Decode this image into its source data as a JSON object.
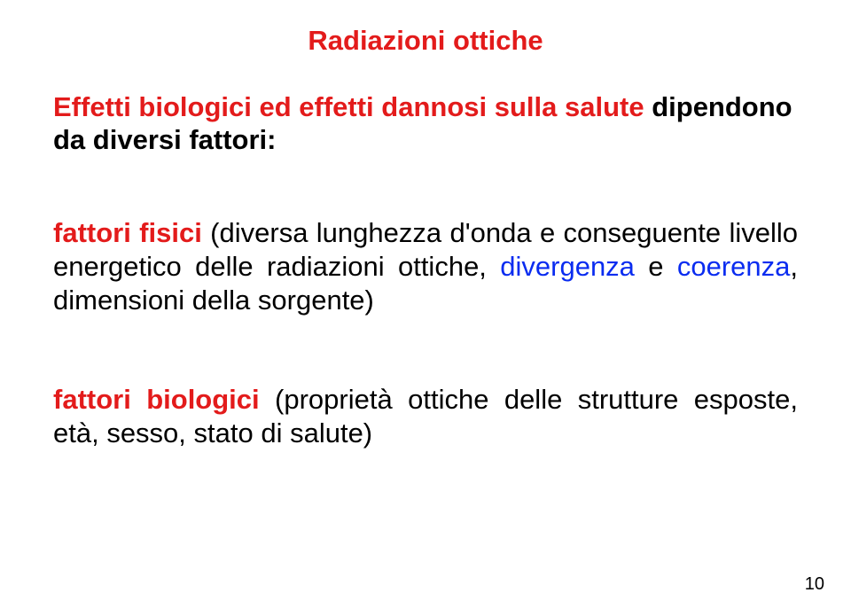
{
  "colors": {
    "red": "#e31b1b",
    "blue": "#0a2cf0",
    "black": "#000000"
  },
  "fontsize": {
    "title": 31,
    "body": 31,
    "pagenum": 20
  },
  "title": "Radiazioni ottiche",
  "lead_red": "Effetti biologici ed effetti dannosi sulla salute ",
  "lead_black": "dipendono da diversi fattori:",
  "sec1": {
    "label": "fattori fisici",
    "black_a": " (diversa lunghezza d'onda e conseguente livello energetico delle radiazioni ottiche, ",
    "blue_a": "divergenza",
    "black_b": " e ",
    "blue_b": "coerenza",
    "black_c": ", dimensioni della sorgente)"
  },
  "sec2": {
    "label": "fattori biologici",
    "rest": " (proprietà ottiche delle strutture esposte, età, sesso, stato di salute)"
  },
  "page": "10"
}
